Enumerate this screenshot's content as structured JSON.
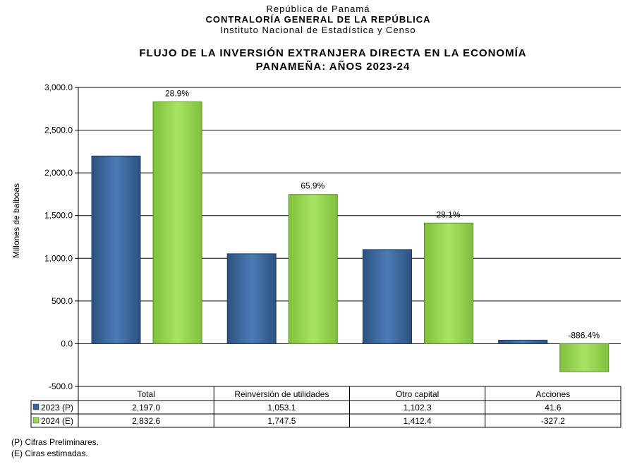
{
  "header": {
    "line1": "República de Panamá",
    "line2": "CONTRALORÍA GENERAL DE LA REPÚBLICA",
    "line3": "Instituto Nacional de Estadística y Censo"
  },
  "footnotes": [
    "(P) Cifras Preliminares.",
    "(E) Ciras estimadas."
  ],
  "chart_data": {
    "type": "bar",
    "title": "FLUJO DE LA INVERSIÓN EXTRANJERA DIRECTA EN LA ECONOMÍA PANAMEÑA: AÑOS 2023-24",
    "title_lines": [
      "FLUJO DE LA INVERSIÓN EXTRANJERA DIRECTA EN LA ECONOMÍA",
      "PANAMEÑA: AÑOS 2023-24"
    ],
    "xlabel": "",
    "ylabel": "Millones de balboas",
    "ylim": [
      -500,
      3000
    ],
    "yticks": [
      3000,
      2500,
      2000,
      1500,
      1000,
      500,
      0,
      -500
    ],
    "ytick_labels": [
      "3,000.0",
      "2,500.0",
      "2,000.0",
      "1,500.0",
      "1,000.0",
      "500.0",
      "0.0",
      "-500.0"
    ],
    "grid": true,
    "categories": [
      "Total",
      "Reinversión de utilidades",
      "Otro capital",
      "Acciones"
    ],
    "series": [
      {
        "name": "2023 (P)",
        "color": "#3a6699",
        "values": [
          2197.0,
          1053.1,
          1102.3,
          41.6
        ],
        "labels": [
          "2,197.0",
          "1,053.1",
          "1,102.3",
          "41.6"
        ]
      },
      {
        "name": "2024 (E)",
        "color": "#9bd955",
        "values": [
          2832.6,
          1747.5,
          1412.4,
          -327.2
        ],
        "labels": [
          "2,832.6",
          "1,747.5",
          "1,412.4",
          "-327.2"
        ]
      }
    ],
    "annotations": [
      "28.9%",
      "65.9%",
      "28.1%",
      "-886.4%"
    ],
    "legend": "data-table"
  }
}
